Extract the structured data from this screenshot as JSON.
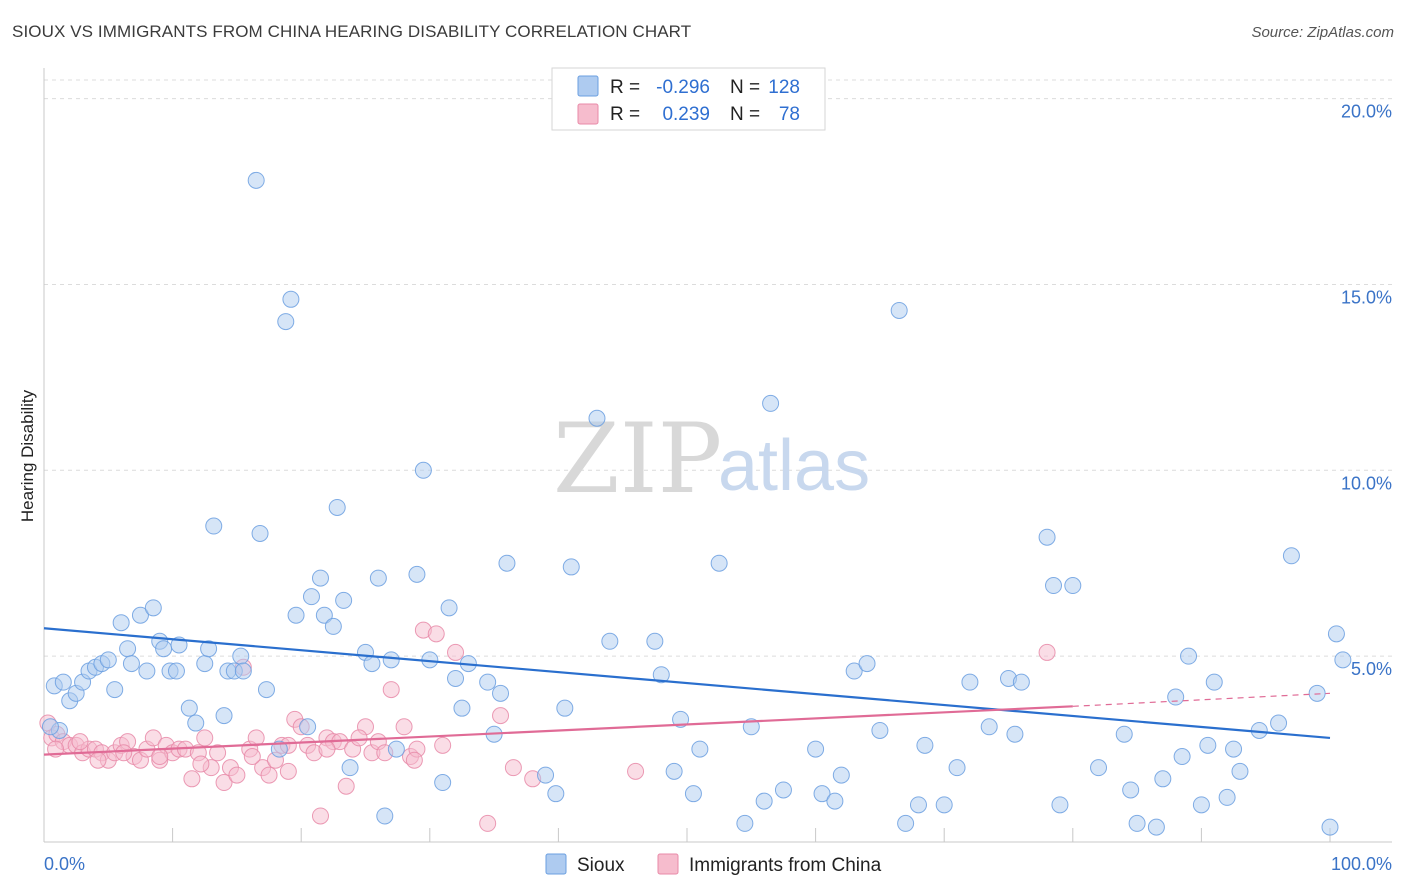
{
  "title": "SIOUX VS IMMIGRANTS FROM CHINA HEARING DISABILITY CORRELATION CHART",
  "source": "Source: ZipAtlas.com",
  "watermark": {
    "zip": "ZIP",
    "atlas": "atlas"
  },
  "colors": {
    "sioux_fill": "#aecbf0",
    "sioux_stroke": "#6b9fe0",
    "sioux_line": "#2a6fce",
    "china_fill": "#f6bccd",
    "china_stroke": "#e88aa8",
    "china_line": "#e06b96",
    "grid": "#dcdcdc",
    "tick_text": "#3a73c7"
  },
  "legend": {
    "rows": [
      {
        "r_label": "R =",
        "r_value": "-0.296",
        "n_label": "N =",
        "n_value": "128"
      },
      {
        "r_label": "R =",
        "r_value": "0.239",
        "n_label": "N =",
        "n_value": "78"
      }
    ],
    "bottom": [
      "Sioux",
      "Immigrants from China"
    ]
  },
  "chart_data": {
    "type": "scatter",
    "title": "SIOUX VS IMMIGRANTS FROM CHINA HEARING DISABILITY CORRELATION CHART",
    "xlabel": "",
    "ylabel": "Hearing Disability",
    "xlim": [
      0,
      100
    ],
    "ylim": [
      0,
      20.5
    ],
    "x_tick_labels": [
      "0.0%",
      "100.0%"
    ],
    "y_ticks": [
      5,
      10,
      15,
      20
    ],
    "y_tick_labels": [
      "5.0%",
      "10.0%",
      "15.0%",
      "20.0%"
    ],
    "grid": true,
    "series": [
      {
        "name": "Sioux",
        "r": -0.296,
        "n": 128,
        "trend": {
          "x": [
            0,
            100
          ],
          "y": [
            5.75,
            2.8
          ]
        },
        "points": [
          [
            0.8,
            4.2
          ],
          [
            1.5,
            4.3
          ],
          [
            2.0,
            3.8
          ],
          [
            2.5,
            4.0
          ],
          [
            3.0,
            4.3
          ],
          [
            3.5,
            4.6
          ],
          [
            4.0,
            4.7
          ],
          [
            4.5,
            4.8
          ],
          [
            5.0,
            4.9
          ],
          [
            5.5,
            4.1
          ],
          [
            6.0,
            5.9
          ],
          [
            6.5,
            5.2
          ],
          [
            6.8,
            4.8
          ],
          [
            7.5,
            6.1
          ],
          [
            8.0,
            4.6
          ],
          [
            8.5,
            6.3
          ],
          [
            9.0,
            5.4
          ],
          [
            9.3,
            5.2
          ],
          [
            9.8,
            4.6
          ],
          [
            10.3,
            4.6
          ],
          [
            10.5,
            5.3
          ],
          [
            11.3,
            3.6
          ],
          [
            11.8,
            3.2
          ],
          [
            12.5,
            4.8
          ],
          [
            12.8,
            5.2
          ],
          [
            13.2,
            8.5
          ],
          [
            14.0,
            3.4
          ],
          [
            14.3,
            4.6
          ],
          [
            14.8,
            4.6
          ],
          [
            15.3,
            5.0
          ],
          [
            15.5,
            4.6
          ],
          [
            16.5,
            17.8
          ],
          [
            16.8,
            8.3
          ],
          [
            17.3,
            4.1
          ],
          [
            18.3,
            2.5
          ],
          [
            18.8,
            14.0
          ],
          [
            19.2,
            14.6
          ],
          [
            19.6,
            6.1
          ],
          [
            20.5,
            3.1
          ],
          [
            20.8,
            6.6
          ],
          [
            21.5,
            7.1
          ],
          [
            21.8,
            6.1
          ],
          [
            22.5,
            5.8
          ],
          [
            22.8,
            9.0
          ],
          [
            23.3,
            6.5
          ],
          [
            23.8,
            2.0
          ],
          [
            25.0,
            5.1
          ],
          [
            25.5,
            4.8
          ],
          [
            26.0,
            7.1
          ],
          [
            26.5,
            0.7
          ],
          [
            27.0,
            4.9
          ],
          [
            27.4,
            2.5
          ],
          [
            29.0,
            7.2
          ],
          [
            29.5,
            10.0
          ],
          [
            30.0,
            4.9
          ],
          [
            31.0,
            1.6
          ],
          [
            31.5,
            6.3
          ],
          [
            32.0,
            4.4
          ],
          [
            32.5,
            3.6
          ],
          [
            33.0,
            4.8
          ],
          [
            34.5,
            4.3
          ],
          [
            35.0,
            2.9
          ],
          [
            35.5,
            4.0
          ],
          [
            36.0,
            7.5
          ],
          [
            39.0,
            1.8
          ],
          [
            39.8,
            1.3
          ],
          [
            40.5,
            3.6
          ],
          [
            41.0,
            7.4
          ],
          [
            43.0,
            11.4
          ],
          [
            44.0,
            5.4
          ],
          [
            47.5,
            5.4
          ],
          [
            48.0,
            4.5
          ],
          [
            49.0,
            1.9
          ],
          [
            49.5,
            3.3
          ],
          [
            50.5,
            1.3
          ],
          [
            51.0,
            2.5
          ],
          [
            52.5,
            7.5
          ],
          [
            54.5,
            0.5
          ],
          [
            55.0,
            3.1
          ],
          [
            56.0,
            1.1
          ],
          [
            56.5,
            11.8
          ],
          [
            57.5,
            1.4
          ],
          [
            60.0,
            2.5
          ],
          [
            60.5,
            1.3
          ],
          [
            61.5,
            1.1
          ],
          [
            62.0,
            1.8
          ],
          [
            63.0,
            4.6
          ],
          [
            64.0,
            4.8
          ],
          [
            65.0,
            3.0
          ],
          [
            66.5,
            14.3
          ],
          [
            67.0,
            0.5
          ],
          [
            68.0,
            1.0
          ],
          [
            68.5,
            2.6
          ],
          [
            70.0,
            1.0
          ],
          [
            71.0,
            2.0
          ],
          [
            72.0,
            4.3
          ],
          [
            73.5,
            3.1
          ],
          [
            75.0,
            4.4
          ],
          [
            75.5,
            2.9
          ],
          [
            76.0,
            4.3
          ],
          [
            78.0,
            8.2
          ],
          [
            78.5,
            6.9
          ],
          [
            79.0,
            1.0
          ],
          [
            80.0,
            6.9
          ],
          [
            82.0,
            2.0
          ],
          [
            84.0,
            2.9
          ],
          [
            84.5,
            1.4
          ],
          [
            85.0,
            0.5
          ],
          [
            86.5,
            0.4
          ],
          [
            87.0,
            1.7
          ],
          [
            88.0,
            3.9
          ],
          [
            88.5,
            2.3
          ],
          [
            89.0,
            5.0
          ],
          [
            90.0,
            1.0
          ],
          [
            90.5,
            2.6
          ],
          [
            91.0,
            4.3
          ],
          [
            92.0,
            1.2
          ],
          [
            92.5,
            2.5
          ],
          [
            93.0,
            1.9
          ],
          [
            94.5,
            3.0
          ],
          [
            96.0,
            3.2
          ],
          [
            97.0,
            7.7
          ],
          [
            99.0,
            4.0
          ],
          [
            100.0,
            0.4
          ],
          [
            100.5,
            5.6
          ],
          [
            101.0,
            4.9
          ],
          [
            1.2,
            3.0
          ],
          [
            0.5,
            3.1
          ]
        ]
      },
      {
        "name": "Immigrants from China",
        "r": 0.239,
        "n": 78,
        "trend": {
          "x": [
            0,
            80
          ],
          "y": [
            2.35,
            3.65
          ]
        },
        "trend_dashed": {
          "x": [
            80,
            100
          ],
          "y": [
            3.65,
            4.0
          ]
        },
        "points": [
          [
            0.3,
            3.2
          ],
          [
            0.6,
            2.8
          ],
          [
            1.0,
            2.9
          ],
          [
            1.5,
            2.7
          ],
          [
            2.0,
            2.6
          ],
          [
            2.5,
            2.6
          ],
          [
            3.0,
            2.4
          ],
          [
            3.5,
            2.5
          ],
          [
            4.0,
            2.5
          ],
          [
            4.5,
            2.4
          ],
          [
            5.0,
            2.2
          ],
          [
            5.5,
            2.4
          ],
          [
            6.0,
            2.6
          ],
          [
            6.5,
            2.7
          ],
          [
            7.0,
            2.3
          ],
          [
            7.5,
            2.2
          ],
          [
            8.0,
            2.5
          ],
          [
            8.5,
            2.8
          ],
          [
            9.0,
            2.2
          ],
          [
            9.5,
            2.6
          ],
          [
            10.0,
            2.4
          ],
          [
            10.5,
            2.5
          ],
          [
            11.0,
            2.5
          ],
          [
            11.5,
            1.7
          ],
          [
            12.0,
            2.4
          ],
          [
            12.5,
            2.8
          ],
          [
            13.0,
            2.0
          ],
          [
            13.5,
            2.4
          ],
          [
            14.0,
            1.6
          ],
          [
            14.5,
            2.0
          ],
          [
            15.0,
            1.8
          ],
          [
            15.5,
            4.7
          ],
          [
            16.0,
            2.5
          ],
          [
            16.5,
            2.8
          ],
          [
            17.0,
            2.0
          ],
          [
            17.5,
            1.8
          ],
          [
            18.0,
            2.2
          ],
          [
            18.5,
            2.6
          ],
          [
            19.0,
            1.9
          ],
          [
            19.5,
            3.3
          ],
          [
            20.0,
            3.1
          ],
          [
            20.5,
            2.6
          ],
          [
            21.0,
            2.4
          ],
          [
            21.5,
            0.7
          ],
          [
            22.0,
            2.8
          ],
          [
            22.5,
            2.7
          ],
          [
            23.0,
            2.7
          ],
          [
            23.5,
            1.5
          ],
          [
            24.0,
            2.5
          ],
          [
            25.0,
            3.1
          ],
          [
            25.5,
            2.4
          ],
          [
            26.0,
            2.7
          ],
          [
            26.5,
            2.4
          ],
          [
            27.0,
            4.1
          ],
          [
            28.0,
            3.1
          ],
          [
            28.5,
            2.3
          ],
          [
            29.0,
            2.5
          ],
          [
            29.5,
            5.7
          ],
          [
            30.5,
            5.6
          ],
          [
            31.0,
            2.6
          ],
          [
            32.0,
            5.1
          ],
          [
            34.5,
            0.5
          ],
          [
            35.5,
            3.4
          ],
          [
            36.5,
            2.0
          ],
          [
            38.0,
            1.7
          ],
          [
            46.0,
            1.9
          ],
          [
            78.0,
            5.1
          ],
          [
            0.9,
            2.5
          ],
          [
            2.8,
            2.7
          ],
          [
            4.2,
            2.2
          ],
          [
            6.2,
            2.4
          ],
          [
            9.0,
            2.3
          ],
          [
            12.2,
            2.1
          ],
          [
            16.2,
            2.3
          ],
          [
            19.0,
            2.6
          ],
          [
            22.0,
            2.5
          ],
          [
            24.5,
            2.8
          ],
          [
            28.8,
            2.2
          ]
        ]
      }
    ]
  }
}
